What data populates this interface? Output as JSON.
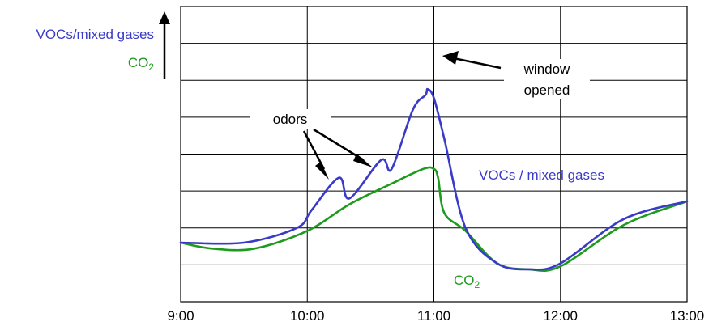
{
  "chart_data": {
    "type": "line",
    "xlabel": "",
    "ylabel": "",
    "x_ticks": [
      "9:00",
      "10:00",
      "11:00",
      "12:00",
      "13:00"
    ],
    "xlim": [
      "9:00",
      "13:00"
    ],
    "grid": true,
    "y_axis_labels": {
      "vocs": "VOCs/mixed gases",
      "co2": "CO",
      "co2_sub": "2"
    },
    "annotations": {
      "odors": "odors",
      "window_line1": "window",
      "window_line2": "opened",
      "vocs_series_label": "VOCs / mixed gases",
      "co2_series_label": "CO",
      "co2_series_sub": "2"
    },
    "colors": {
      "vocs": "#3a3ac8",
      "co2": "#1e9a1e",
      "grid": "#000000"
    },
    "series": [
      {
        "key": "vocs",
        "x": [
          "9:00",
          "9:30",
          "9:55",
          "10:02",
          "10:15",
          "10:20",
          "10:35",
          "10:40",
          "10:50",
          "10:56",
          "10:57",
          "11:00",
          "11:05",
          "11:15",
          "11:30",
          "11:45",
          "12:00",
          "12:30",
          "13:00"
        ],
        "y": [
          0.2,
          0.2,
          0.25,
          0.31,
          0.42,
          0.35,
          0.48,
          0.45,
          0.65,
          0.7,
          0.72,
          0.69,
          0.55,
          0.25,
          0.13,
          0.11,
          0.13,
          0.28,
          0.34
        ]
      },
      {
        "key": "co2",
        "x": [
          "9:00",
          "9:15",
          "9:35",
          "10:00",
          "10:20",
          "10:40",
          "10:55",
          "11:00",
          "11:02",
          "11:05",
          "11:15",
          "11:30",
          "11:45",
          "12:00",
          "12:30",
          "13:00"
        ],
        "y": [
          0.2,
          0.18,
          0.18,
          0.24,
          0.33,
          0.4,
          0.45,
          0.45,
          0.42,
          0.3,
          0.24,
          0.13,
          0.11,
          0.12,
          0.26,
          0.34
        ]
      }
    ]
  }
}
